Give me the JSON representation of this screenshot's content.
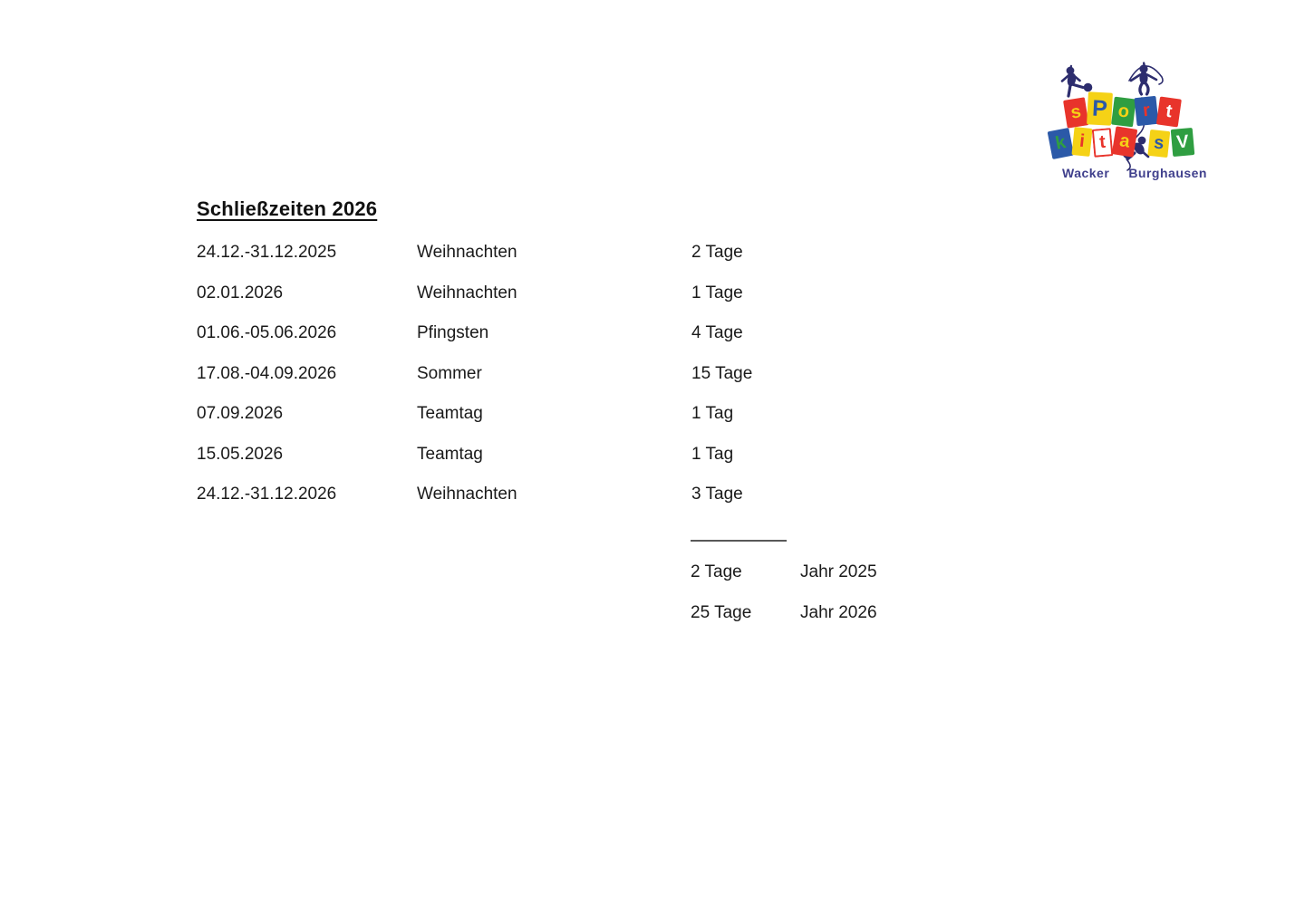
{
  "page": {
    "background": "#ffffff",
    "text_color": "#1a1a1a"
  },
  "document": {
    "title": "Schließzeiten 2026",
    "rows": [
      {
        "date": "24.12.-31.12.2025",
        "name": "Weihnachten",
        "days": "2 Tage"
      },
      {
        "date": "02.01.2026",
        "name": "Weihnachten",
        "days": "1 Tage"
      },
      {
        "date": "01.06.-05.06.2026",
        "name": "Pfingsten",
        "days": "4 Tage"
      },
      {
        "date": "17.08.-04.09.2026",
        "name": "Sommer",
        "days": "15 Tage"
      },
      {
        "date": "07.09.2026",
        "name": "Teamtag",
        "days": "1 Tag"
      },
      {
        "date": "15.05.2026",
        "name": "Teamtag",
        "days": "1 Tag"
      },
      {
        "date": "24.12.-31.12.2026",
        "name": "Weihnachten",
        "days": "3 Tage"
      }
    ],
    "summary": {
      "rows": [
        {
          "days": "2 Tage",
          "year": "Jahr 2025"
        },
        {
          "days": "25 Tage",
          "year": "Jahr 2026"
        }
      ]
    }
  },
  "logo": {
    "subtitle_left": "Wacker",
    "subtitle_right": "Burghausen",
    "subtitle_color": "#3f3f8c",
    "silhouette_color": "#2d2d6e",
    "rows": [
      [
        {
          "ch": "s",
          "bg": "#e8342b",
          "fg": "#f5d216"
        },
        {
          "ch": "P",
          "bg": "#f5d216",
          "fg": "#2b59a8"
        },
        {
          "ch": "o",
          "bg": "#2f9e41",
          "fg": "#f5d216"
        },
        {
          "ch": "r",
          "bg": "#2b59a8",
          "fg": "#e8342b"
        },
        {
          "ch": "t",
          "bg": "#e8342b",
          "fg": "#ffffff"
        }
      ],
      [
        {
          "ch": "k",
          "bg": "#2b59a8",
          "fg": "#2f9e41"
        },
        {
          "ch": "i",
          "bg": "#f5d216",
          "fg": "#e8342b"
        },
        {
          "ch": "t",
          "bg": "#ffffff",
          "fg": "#e8342b",
          "border": "#e8342b"
        },
        {
          "ch": "a",
          "bg": "#e8342b",
          "fg": "#f5d216"
        }
      ],
      [
        {
          "ch": "s",
          "bg": "#f5d216",
          "fg": "#2b59a8"
        },
        {
          "ch": "V",
          "bg": "#2f9e41",
          "fg": "#ffffff"
        }
      ]
    ]
  }
}
